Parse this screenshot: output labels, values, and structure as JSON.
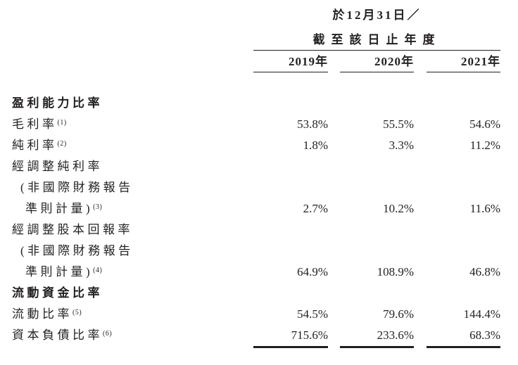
{
  "header": {
    "period_line1": "於12月31日／",
    "period_line2": "截至該日止年度",
    "year_columns": [
      "2019年",
      "2020年",
      "2021年"
    ]
  },
  "table": {
    "rows": [
      {
        "label": "盈利能力比率",
        "values": [
          "",
          "",
          ""
        ]
      },
      {
        "label": "毛利率",
        "sup": "(1)",
        "values": [
          "53.8%",
          "55.5%",
          "54.6%"
        ]
      },
      {
        "label": "純利率",
        "sup": "(2)",
        "values": [
          "1.8%",
          "3.3%",
          "11.2%"
        ]
      },
      {
        "label": "經調整純利率",
        "values": [
          "",
          "",
          ""
        ]
      },
      {
        "label": "(非國際財務報告",
        "values": [
          "",
          "",
          ""
        ]
      },
      {
        "label": "準則計量)",
        "sup": "(3)",
        "values": [
          "2.7%",
          "10.2%",
          "11.6%"
        ]
      },
      {
        "label": "經調整股本回報率",
        "values": [
          "",
          "",
          ""
        ]
      },
      {
        "label": "(非國際財務報告",
        "values": [
          "",
          "",
          ""
        ]
      },
      {
        "label": "準則計量)",
        "sup": "(4)",
        "values": [
          "64.9%",
          "108.9%",
          "46.8%"
        ]
      },
      {
        "label": "流動資金比率",
        "values": [
          "",
          "",
          ""
        ]
      },
      {
        "label": "流動比率",
        "sup": "(5)",
        "values": [
          "54.5%",
          "79.6%",
          "144.4%"
        ]
      },
      {
        "label": "資本負債比率",
        "sup": "(6)",
        "values": [
          "715.6%",
          "233.6%",
          "68.3%"
        ]
      }
    ]
  },
  "colors": {
    "text": "#231f20",
    "rule": "#231f20",
    "background": "#ffffff"
  }
}
